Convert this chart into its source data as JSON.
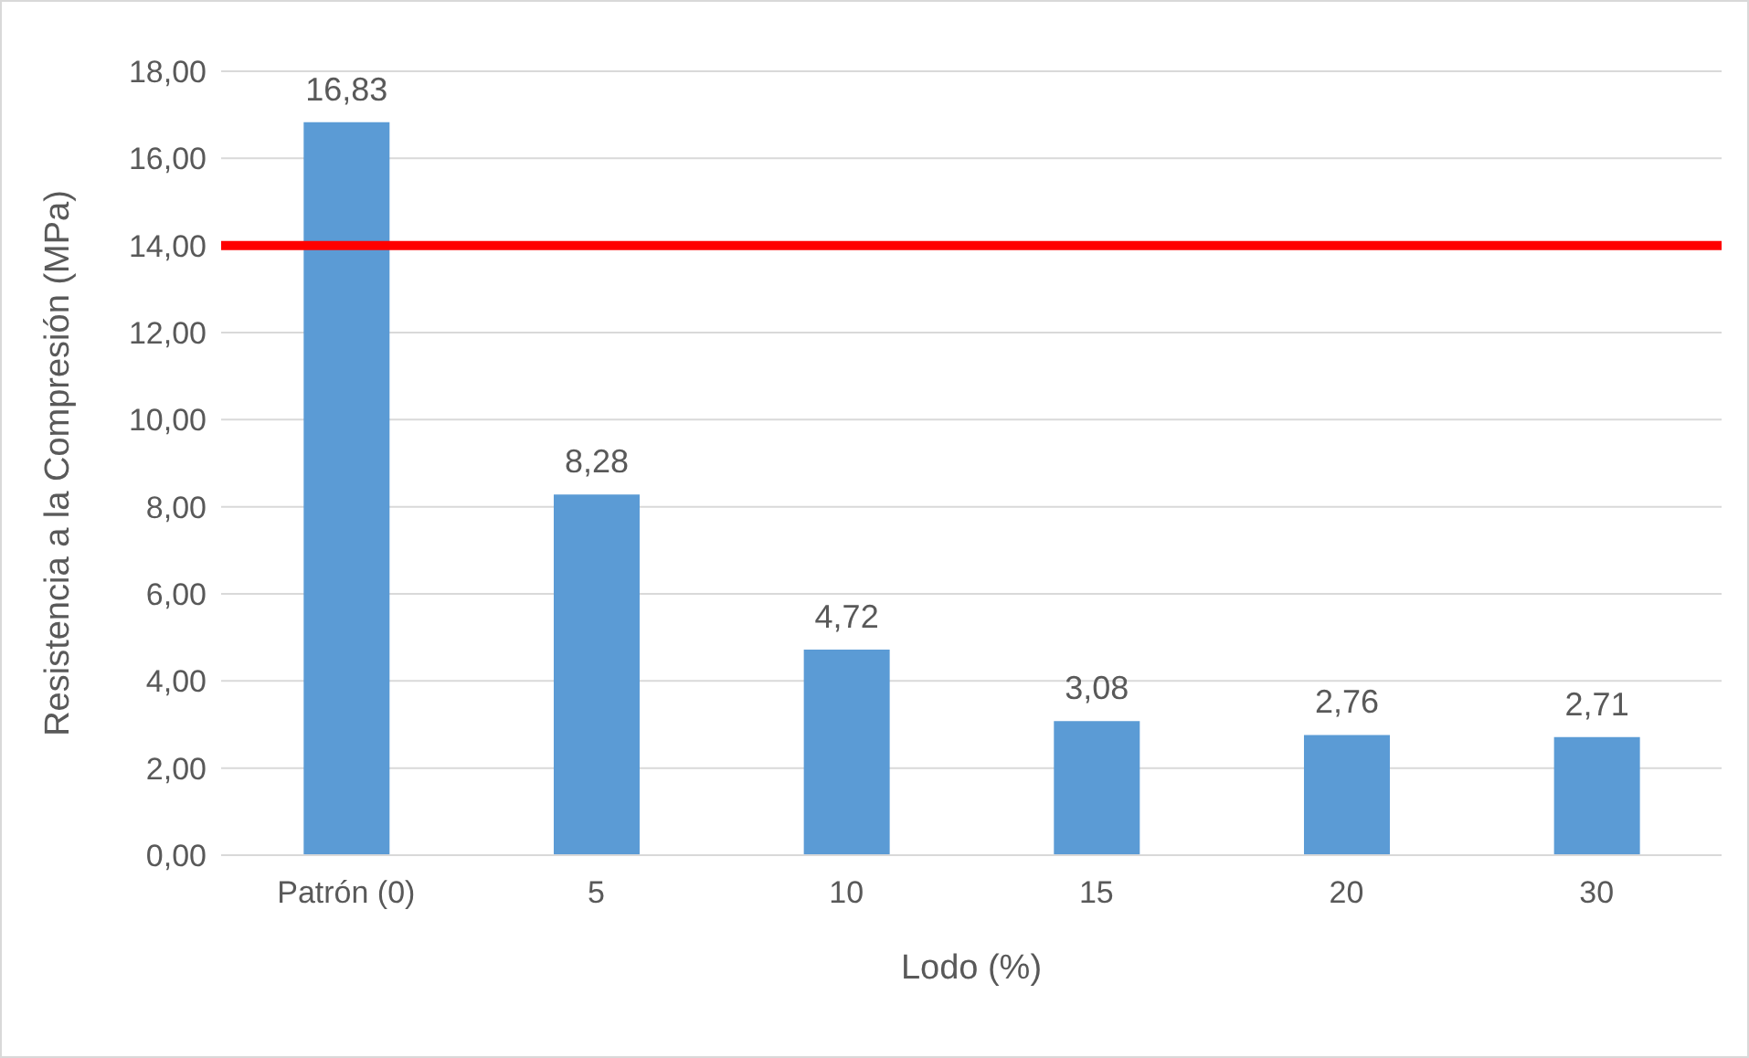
{
  "chart_data": {
    "type": "bar",
    "xlabel": "Lodo (%)",
    "ylabel": "Resistencia a la Compresión (MPa)",
    "categories": [
      "Patrón (0)",
      "5",
      "10",
      "15",
      "20",
      "30"
    ],
    "values": [
      16.83,
      8.28,
      4.72,
      3.08,
      2.76,
      2.71
    ],
    "value_labels": [
      "16,83",
      "8,28",
      "4,72",
      "3,08",
      "2,76",
      "2,71"
    ],
    "color": "#5b9bd5",
    "ylim": [
      0,
      18
    ],
    "yticks": [
      {
        "value": 0,
        "label": "0,00"
      },
      {
        "value": 2,
        "label": "2,00"
      },
      {
        "value": 4,
        "label": "4,00"
      },
      {
        "value": 6,
        "label": "6,00"
      },
      {
        "value": 8,
        "label": "8,00"
      },
      {
        "value": 10,
        "label": "10,00"
      },
      {
        "value": 12,
        "label": "12,00"
      },
      {
        "value": 14,
        "label": "14,00"
      },
      {
        "value": 16,
        "label": "16,00"
      },
      {
        "value": 18,
        "label": "18,00"
      }
    ],
    "grid": "y",
    "ref_lines": [
      {
        "axis": "y",
        "value": 14,
        "color": "#ff0000"
      }
    ]
  }
}
